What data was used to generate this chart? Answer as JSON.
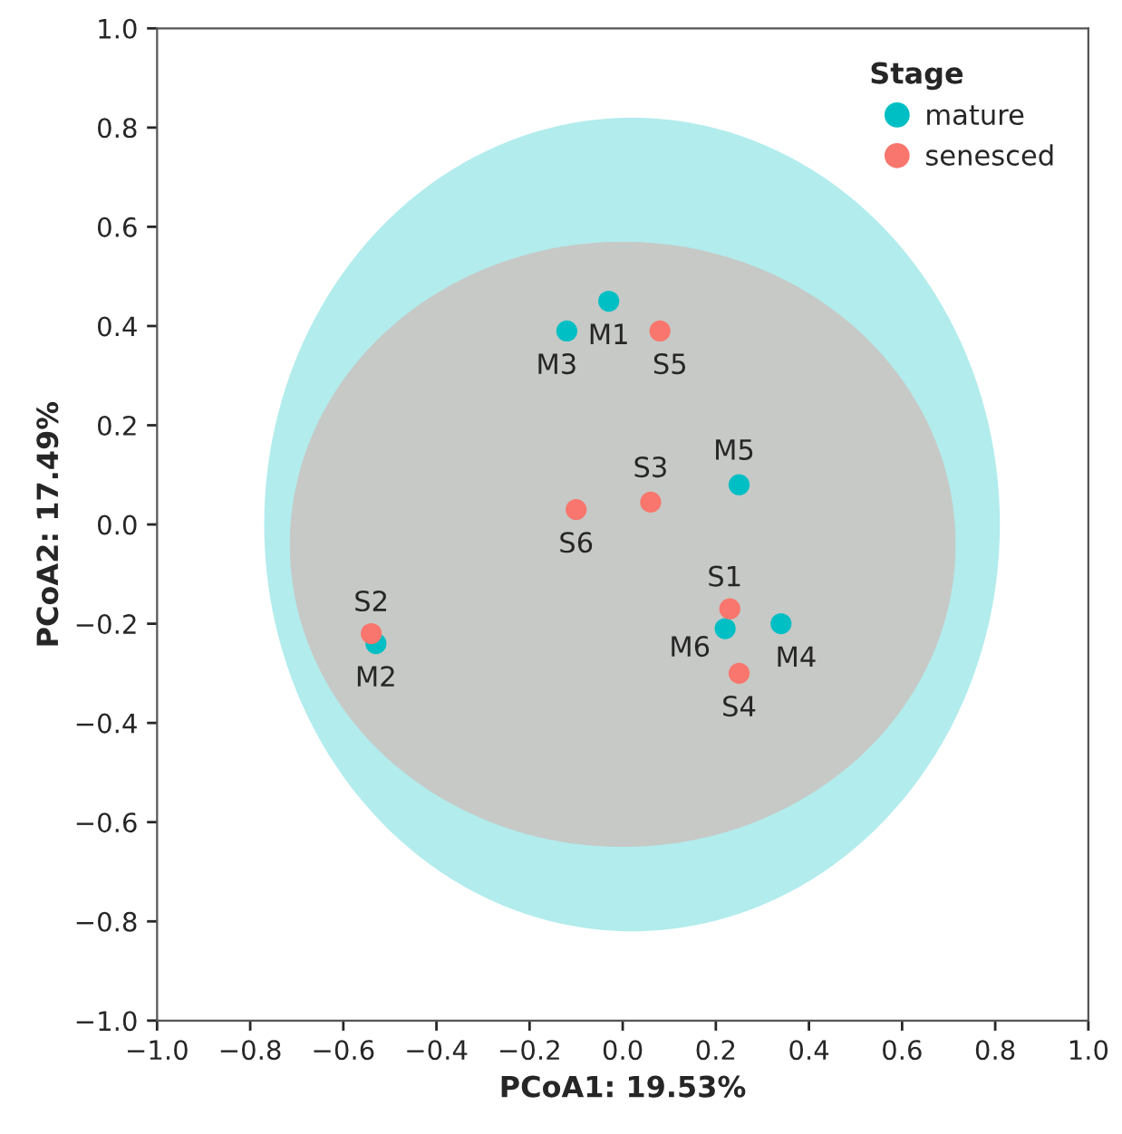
{
  "chart_data": {
    "type": "scatter",
    "xlabel": "PCoA1: 19.53%",
    "ylabel": "PCoA2: 17.49%",
    "legend_title": "Stage",
    "series": [
      {
        "name": "mature",
        "color": "#00bfc4",
        "x": [
          -0.03,
          -0.53,
          -0.12,
          0.34,
          0.25,
          0.22
        ],
        "values": [
          0.45,
          -0.24,
          0.39,
          -0.2,
          0.08,
          -0.21
        ]
      },
      {
        "name": "senesced",
        "color": "#f8766d",
        "x": [
          0.23,
          -0.54,
          0.06,
          0.25,
          0.08,
          -0.1
        ],
        "values": [
          -0.17,
          -0.22,
          0.045,
          -0.3,
          0.39,
          0.03
        ]
      }
    ],
    "annotations": [
      {
        "text": "M1",
        "x": -0.03,
        "y": 0.45
      },
      {
        "text": "M2",
        "x": -0.53,
        "y": -0.24
      },
      {
        "text": "M3",
        "x": -0.12,
        "y": 0.39
      },
      {
        "text": "M4",
        "x": 0.34,
        "y": -0.2
      },
      {
        "text": "M5",
        "x": 0.25,
        "y": 0.08
      },
      {
        "text": "M6",
        "x": 0.22,
        "y": -0.21
      },
      {
        "text": "S1",
        "x": 0.23,
        "y": -0.17
      },
      {
        "text": "S2",
        "x": -0.54,
        "y": -0.22
      },
      {
        "text": "S3",
        "x": 0.06,
        "y": 0.045
      },
      {
        "text": "S4",
        "x": 0.25,
        "y": -0.3
      },
      {
        "text": "S5",
        "x": 0.08,
        "y": 0.39
      },
      {
        "text": "S6",
        "x": -0.1,
        "y": 0.03
      }
    ],
    "xlim": [
      -1.0,
      1.0
    ],
    "ylim": [
      -1.0,
      1.0
    ],
    "xticks": [
      {
        "value": -1.0,
        "label": "−1.0"
      },
      {
        "value": -0.8,
        "label": "−0.8"
      },
      {
        "value": -0.6,
        "label": "−0.6"
      },
      {
        "value": -0.4,
        "label": "−0.4"
      },
      {
        "value": -0.2,
        "label": "−0.2"
      },
      {
        "value": 0.0,
        "label": "0.0"
      },
      {
        "value": 0.2,
        "label": "0.2"
      },
      {
        "value": 0.4,
        "label": "0.4"
      },
      {
        "value": 0.6,
        "label": "0.6"
      },
      {
        "value": 0.8,
        "label": "0.8"
      },
      {
        "value": 1.0,
        "label": "1.0"
      }
    ],
    "yticks": [
      {
        "value": -1.0,
        "label": "−1.0"
      },
      {
        "value": -0.8,
        "label": "−0.8"
      },
      {
        "value": -0.6,
        "label": "−0.6"
      },
      {
        "value": -0.4,
        "label": "−0.4"
      },
      {
        "value": -0.2,
        "label": "−0.2"
      },
      {
        "value": 0.0,
        "label": "0.0"
      },
      {
        "value": 0.2,
        "label": "0.2"
      },
      {
        "value": 0.4,
        "label": "0.4"
      },
      {
        "value": 0.6,
        "label": "0.6"
      },
      {
        "value": 0.8,
        "label": "0.8"
      },
      {
        "value": 1.0,
        "label": "1.0"
      }
    ],
    "legend": "top right",
    "grid": false,
    "marker": "circle"
  }
}
